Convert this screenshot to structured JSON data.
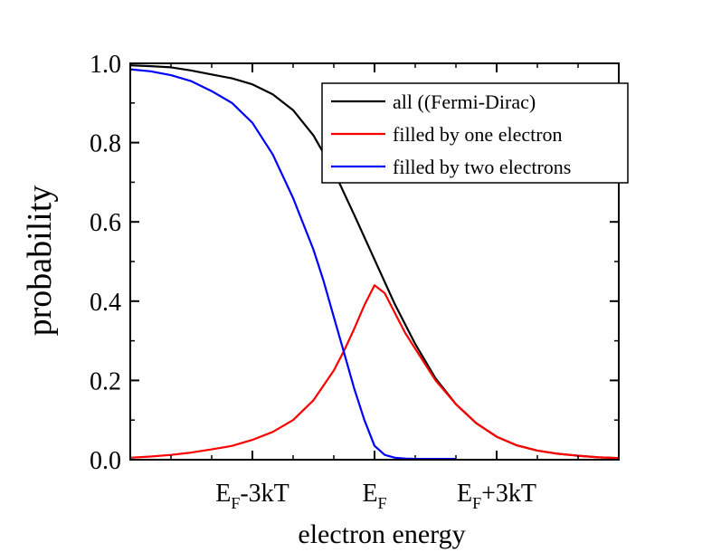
{
  "chart_data": {
    "type": "line",
    "xlabel": "electron energy",
    "ylabel": "probability",
    "xlim": [
      -6,
      6
    ],
    "ylim": [
      0,
      1
    ],
    "x_unit": "kT relative to E_F",
    "xticks": [
      {
        "x": -3,
        "main": "E",
        "sub": "F",
        "tail": "-3kT"
      },
      {
        "x": 0,
        "main": "E",
        "sub": "F",
        "tail": ""
      },
      {
        "x": 3,
        "main": "E",
        "sub": "F",
        "tail": "+3kT"
      }
    ],
    "yticks": [
      {
        "y": 0.0,
        "label": "0.0"
      },
      {
        "y": 0.2,
        "label": "0.2"
      },
      {
        "y": 0.4,
        "label": "0.4"
      },
      {
        "y": 0.6,
        "label": "0.6"
      },
      {
        "y": 0.8,
        "label": "0.8"
      },
      {
        "y": 1.0,
        "label": "1.0"
      }
    ],
    "grid": false,
    "legend_position": "top-right",
    "series": [
      {
        "name": "all ((Fermi-Dirac)",
        "color": "#000000",
        "x": [
          -6,
          -5.5,
          -5,
          -4.5,
          -4,
          -3.5,
          -3,
          -2.5,
          -2,
          -1.5,
          -1,
          -0.5,
          0,
          0.5,
          1,
          1.5,
          2,
          2.5,
          3,
          3.5,
          4,
          4.5,
          5,
          5.5,
          6
        ],
        "y": [
          0.995,
          0.993,
          0.99,
          0.982,
          0.972,
          0.962,
          0.947,
          0.922,
          0.882,
          0.818,
          0.728,
          0.618,
          0.505,
          0.392,
          0.292,
          0.205,
          0.14,
          0.092,
          0.058,
          0.036,
          0.023,
          0.015,
          0.01,
          0.006,
          0.004
        ]
      },
      {
        "name": "filled by one electron",
        "color": "#ff0000",
        "x": [
          -6,
          -5.5,
          -5,
          -4.5,
          -4,
          -3.5,
          -3,
          -2.5,
          -2,
          -1.5,
          -1,
          -0.75,
          -0.5,
          -0.25,
          0,
          0.25,
          0.5,
          0.75,
          1,
          1.5,
          2,
          2.5,
          3,
          3.5,
          4,
          4.5,
          5,
          5.5,
          6
        ],
        "y": [
          0.005,
          0.008,
          0.012,
          0.018,
          0.026,
          0.035,
          0.05,
          0.07,
          0.1,
          0.15,
          0.225,
          0.275,
          0.33,
          0.39,
          0.44,
          0.42,
          0.37,
          0.32,
          0.28,
          0.2,
          0.14,
          0.092,
          0.058,
          0.036,
          0.023,
          0.015,
          0.01,
          0.006,
          0.004
        ]
      },
      {
        "name": "filled by two electrons",
        "color": "#0000ff",
        "x": [
          -6,
          -5.5,
          -5,
          -4.5,
          -4,
          -3.5,
          -3,
          -2.5,
          -2,
          -1.5,
          -1.25,
          -1,
          -0.75,
          -0.5,
          -0.25,
          0,
          0.25,
          0.5,
          0.75,
          1,
          1.5,
          2
        ],
        "y": [
          0.985,
          0.98,
          0.97,
          0.955,
          0.93,
          0.9,
          0.85,
          0.77,
          0.66,
          0.53,
          0.45,
          0.36,
          0.27,
          0.18,
          0.1,
          0.035,
          0.012,
          0.005,
          0.003,
          0.002,
          0.002,
          0.002
        ]
      }
    ]
  }
}
